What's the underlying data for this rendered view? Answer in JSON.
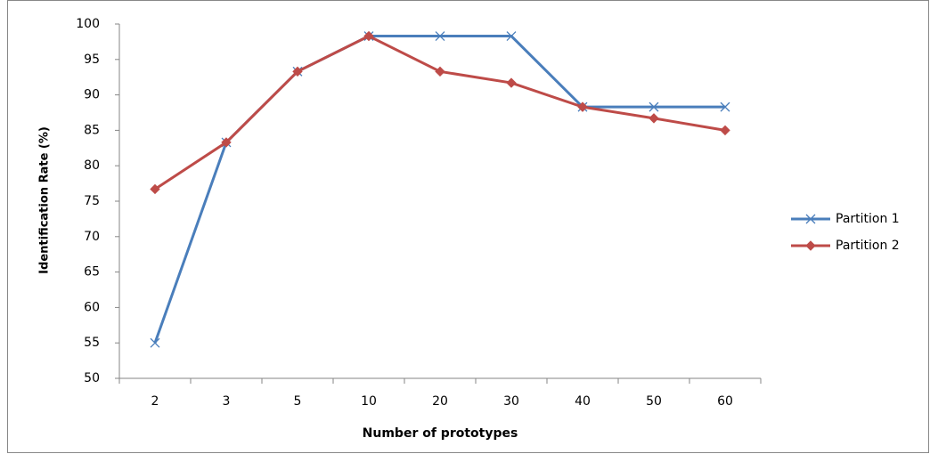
{
  "chart_data": {
    "type": "line",
    "x_label": "Number of prototypes",
    "y_label": "Identification Rate (%)",
    "categories": [
      "2",
      "3",
      "5",
      "10",
      "20",
      "30",
      "40",
      "50",
      "60"
    ],
    "series": [
      {
        "name": "Partition 1",
        "color": "#4a7ebb",
        "marker": "x",
        "values": [
          55.0,
          83.3,
          93.3,
          98.3,
          98.3,
          98.3,
          88.3,
          88.3,
          88.3
        ]
      },
      {
        "name": "Partition 2",
        "color": "#be4b48",
        "marker": "diamond",
        "values": [
          76.7,
          83.3,
          93.3,
          98.3,
          93.3,
          91.7,
          88.3,
          86.7,
          85.0
        ]
      }
    ],
    "ylim": [
      50,
      100
    ],
    "yticks": [
      50,
      55,
      60,
      65,
      70,
      75,
      80,
      85,
      90,
      95,
      100
    ],
    "grid": false,
    "legend": "right"
  }
}
